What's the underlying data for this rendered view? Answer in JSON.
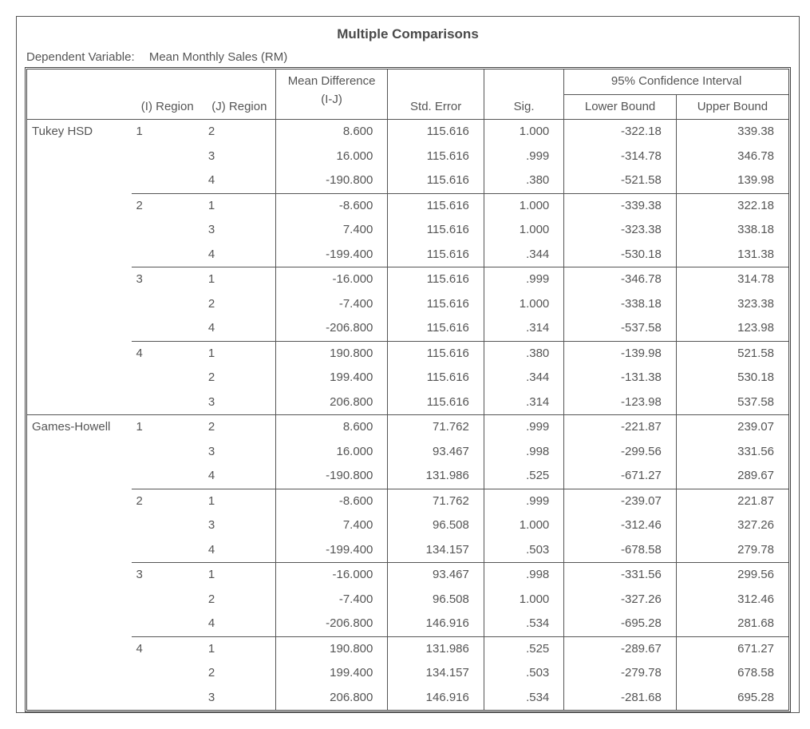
{
  "title": "Multiple Comparisons",
  "dependent_label": "Dependent Variable:",
  "dependent_value": "Mean Monthly Sales (RM)",
  "headers": {
    "i_region": "(I) Region",
    "j_region": "(J) Region",
    "mean_diff": "Mean Difference (I-J)",
    "std_error": "Std. Error",
    "sig": "Sig.",
    "ci": "95% Confidence Interval",
    "lower": "Lower Bound",
    "upper": "Upper Bound"
  },
  "tests": [
    {
      "name": "Tukey HSD",
      "groups": [
        {
          "i": "1",
          "rows": [
            {
              "j": "2",
              "md": "8.600",
              "se": "115.616",
              "sig": "1.000",
              "lb": "-322.18",
              "ub": "339.38"
            },
            {
              "j": "3",
              "md": "16.000",
              "se": "115.616",
              "sig": ".999",
              "lb": "-314.78",
              "ub": "346.78"
            },
            {
              "j": "4",
              "md": "-190.800",
              "se": "115.616",
              "sig": ".380",
              "lb": "-521.58",
              "ub": "139.98"
            }
          ]
        },
        {
          "i": "2",
          "rows": [
            {
              "j": "1",
              "md": "-8.600",
              "se": "115.616",
              "sig": "1.000",
              "lb": "-339.38",
              "ub": "322.18"
            },
            {
              "j": "3",
              "md": "7.400",
              "se": "115.616",
              "sig": "1.000",
              "lb": "-323.38",
              "ub": "338.18"
            },
            {
              "j": "4",
              "md": "-199.400",
              "se": "115.616",
              "sig": ".344",
              "lb": "-530.18",
              "ub": "131.38"
            }
          ]
        },
        {
          "i": "3",
          "rows": [
            {
              "j": "1",
              "md": "-16.000",
              "se": "115.616",
              "sig": ".999",
              "lb": "-346.78",
              "ub": "314.78"
            },
            {
              "j": "2",
              "md": "-7.400",
              "se": "115.616",
              "sig": "1.000",
              "lb": "-338.18",
              "ub": "323.38"
            },
            {
              "j": "4",
              "md": "-206.800",
              "se": "115.616",
              "sig": ".314",
              "lb": "-537.58",
              "ub": "123.98"
            }
          ]
        },
        {
          "i": "4",
          "rows": [
            {
              "j": "1",
              "md": "190.800",
              "se": "115.616",
              "sig": ".380",
              "lb": "-139.98",
              "ub": "521.58"
            },
            {
              "j": "2",
              "md": "199.400",
              "se": "115.616",
              "sig": ".344",
              "lb": "-131.38",
              "ub": "530.18"
            },
            {
              "j": "3",
              "md": "206.800",
              "se": "115.616",
              "sig": ".314",
              "lb": "-123.98",
              "ub": "537.58"
            }
          ]
        }
      ]
    },
    {
      "name": "Games-Howell",
      "groups": [
        {
          "i": "1",
          "rows": [
            {
              "j": "2",
              "md": "8.600",
              "se": "71.762",
              "sig": ".999",
              "lb": "-221.87",
              "ub": "239.07"
            },
            {
              "j": "3",
              "md": "16.000",
              "se": "93.467",
              "sig": ".998",
              "lb": "-299.56",
              "ub": "331.56"
            },
            {
              "j": "4",
              "md": "-190.800",
              "se": "131.986",
              "sig": ".525",
              "lb": "-671.27",
              "ub": "289.67"
            }
          ]
        },
        {
          "i": "2",
          "rows": [
            {
              "j": "1",
              "md": "-8.600",
              "se": "71.762",
              "sig": ".999",
              "lb": "-239.07",
              "ub": "221.87"
            },
            {
              "j": "3",
              "md": "7.400",
              "se": "96.508",
              "sig": "1.000",
              "lb": "-312.46",
              "ub": "327.26"
            },
            {
              "j": "4",
              "md": "-199.400",
              "se": "134.157",
              "sig": ".503",
              "lb": "-678.58",
              "ub": "279.78"
            }
          ]
        },
        {
          "i": "3",
          "rows": [
            {
              "j": "1",
              "md": "-16.000",
              "se": "93.467",
              "sig": ".998",
              "lb": "-331.56",
              "ub": "299.56"
            },
            {
              "j": "2",
              "md": "-7.400",
              "se": "96.508",
              "sig": "1.000",
              "lb": "-327.26",
              "ub": "312.46"
            },
            {
              "j": "4",
              "md": "-206.800",
              "se": "146.916",
              "sig": ".534",
              "lb": "-695.28",
              "ub": "281.68"
            }
          ]
        },
        {
          "i": "4",
          "rows": [
            {
              "j": "1",
              "md": "190.800",
              "se": "131.986",
              "sig": ".525",
              "lb": "-289.67",
              "ub": "671.27"
            },
            {
              "j": "2",
              "md": "199.400",
              "se": "134.157",
              "sig": ".503",
              "lb": "-279.78",
              "ub": "678.58"
            },
            {
              "j": "3",
              "md": "206.800",
              "se": "146.916",
              "sig": ".534",
              "lb": "-281.68",
              "ub": "695.28"
            }
          ]
        }
      ]
    }
  ]
}
